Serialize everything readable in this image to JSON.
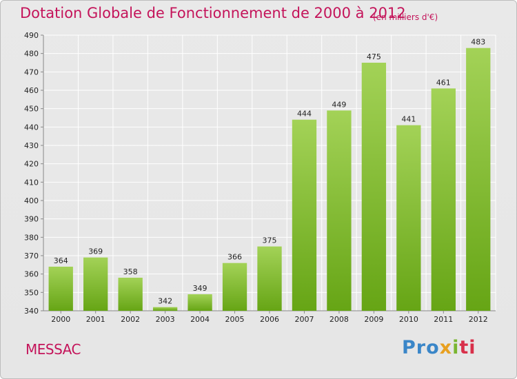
{
  "title": "Dotation Globale de Fonctionnement de 2000 à 2012",
  "unit_note": "(en milliers d'€)",
  "commune": "MESSAC",
  "logo": {
    "p1": "Pro",
    "p2": "x",
    "p3": "i",
    "p4": "ti"
  },
  "colors": {
    "title": "#c4145a",
    "bar_top": "#a3d257",
    "bar_bottom": "#66a515"
  },
  "chart_data": {
    "type": "bar",
    "categories": [
      "2000",
      "2001",
      "2002",
      "2003",
      "2004",
      "2005",
      "2006",
      "2007",
      "2008",
      "2009",
      "2010",
      "2011",
      "2012"
    ],
    "values": [
      364,
      369,
      358,
      342,
      349,
      366,
      375,
      444,
      449,
      475,
      441,
      461,
      483
    ],
    "ylim": [
      340,
      490
    ],
    "yticks": [
      340,
      350,
      360,
      370,
      380,
      390,
      400,
      410,
      420,
      430,
      440,
      450,
      460,
      470,
      480,
      490
    ],
    "grid": true
  }
}
